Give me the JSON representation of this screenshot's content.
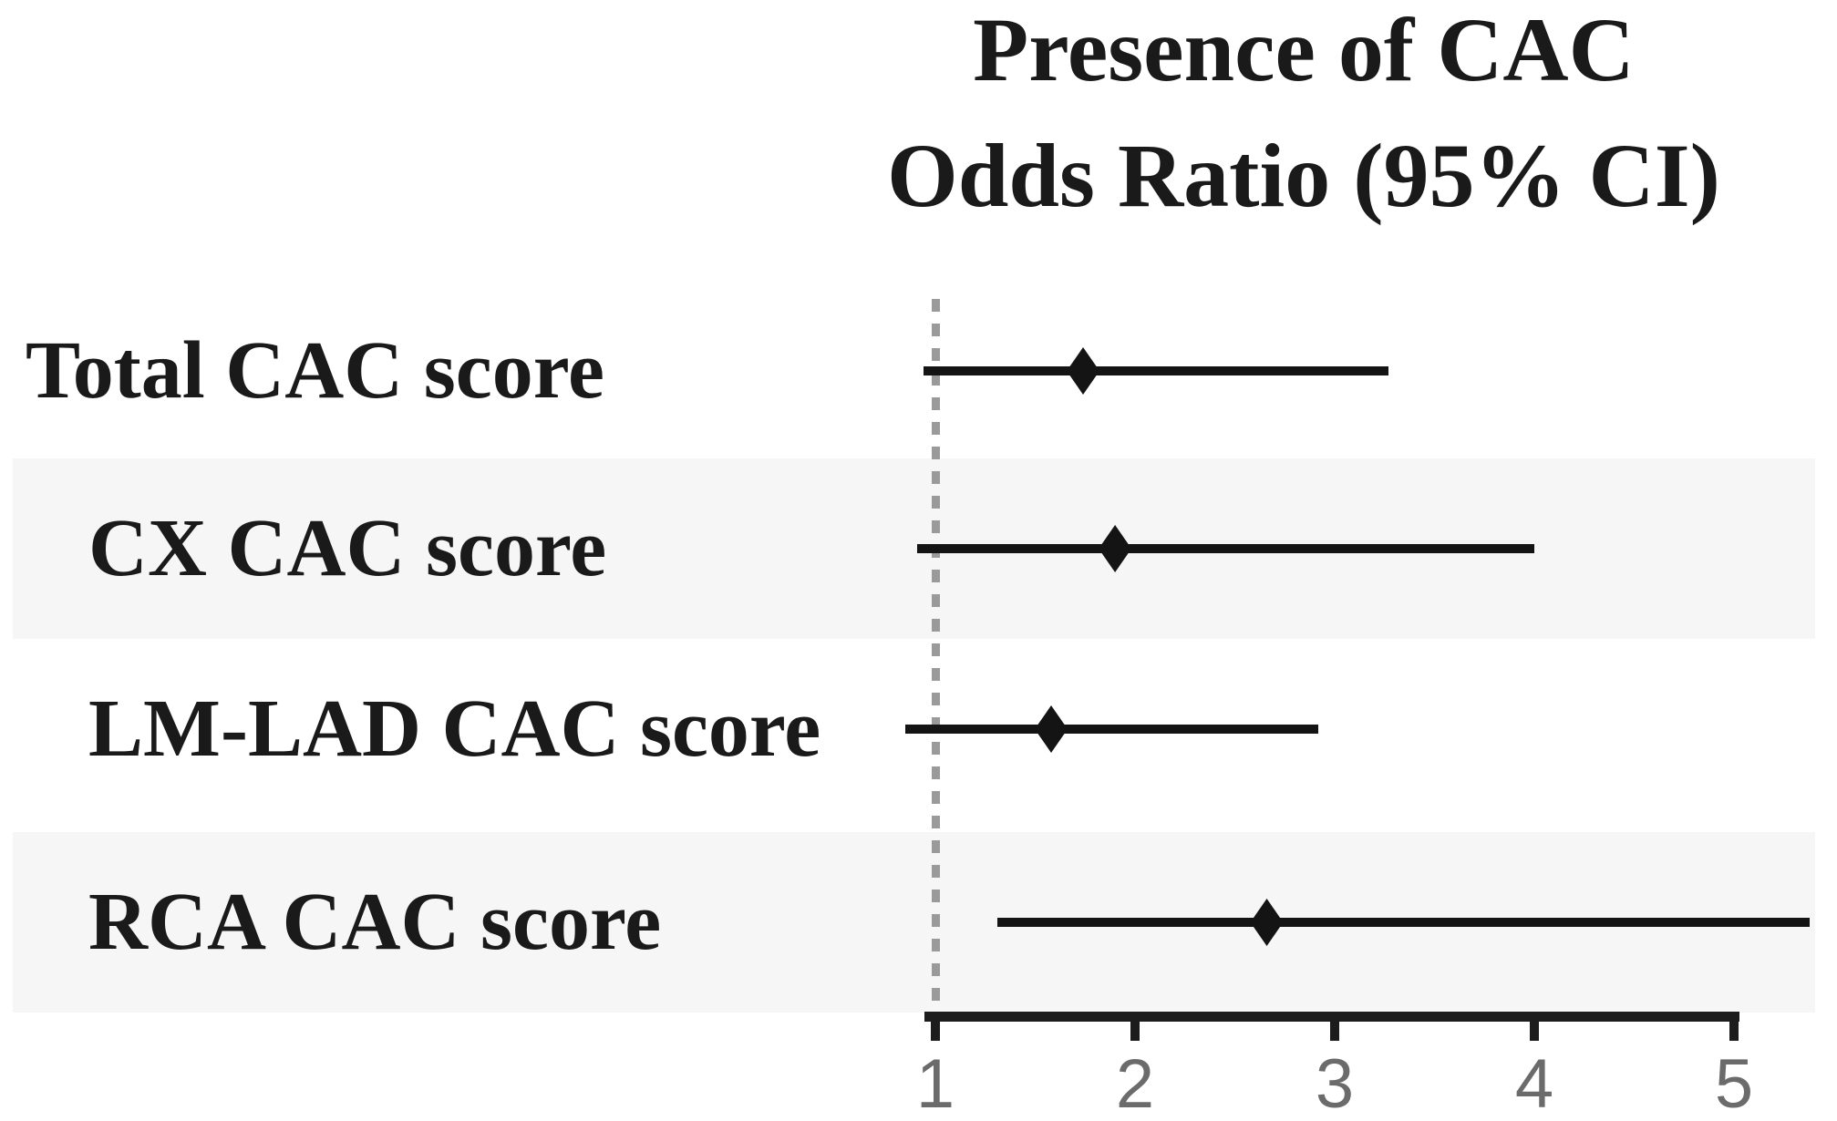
{
  "title": {
    "line1": "Presence of CAC",
    "line2": "Odds Ratio (95% CI)"
  },
  "chart_data": {
    "type": "forest-plot",
    "title": "Presence of CAC Odds Ratio (95% CI)",
    "grid": false,
    "legend": null,
    "x_axis": {
      "min": 1,
      "max": 5,
      "ticks": [
        1,
        2,
        3,
        4,
        5
      ],
      "reference_line": 1,
      "scale": "linear"
    },
    "rows": [
      {
        "label": "Total CAC score",
        "or": 1.74,
        "ci_low": 0.94,
        "ci_high": 3.27,
        "shaded": false,
        "indented": false
      },
      {
        "label": "CX CAC score",
        "or": 1.9,
        "ci_low": 0.91,
        "ci_high": 4.0,
        "shaded": true,
        "indented": true
      },
      {
        "label": "LM-LAD CAC score",
        "or": 1.58,
        "ci_low": 0.85,
        "ci_high": 2.92,
        "shaded": false,
        "indented": true
      },
      {
        "label": "RCA CAC score",
        "or": 2.66,
        "ci_low": 1.31,
        "ci_high": 5.38,
        "shaded": true,
        "indented": true
      }
    ]
  },
  "colors": {
    "background": "#ffffff",
    "text": "#1a1a1a",
    "marker_line": "#141414",
    "axis": "#1c1c1c",
    "tick_label": "#6b6b6b",
    "reference_dash": "#9a9a9a",
    "band": "#f6f6f6"
  }
}
